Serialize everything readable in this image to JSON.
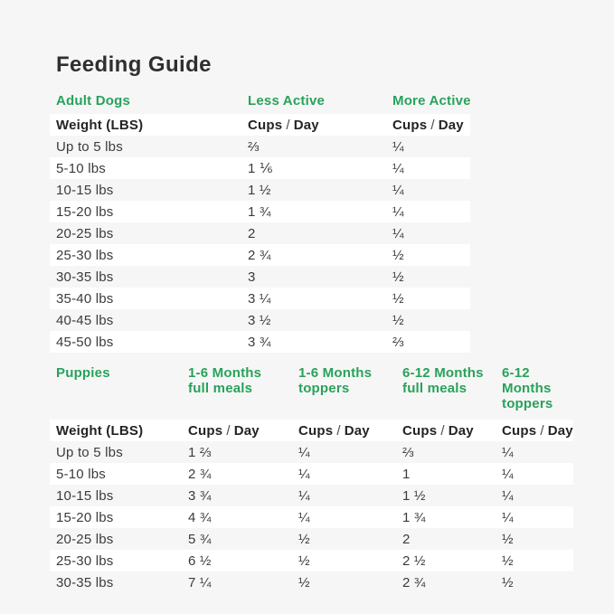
{
  "page": {
    "title": "Feeding Guide"
  },
  "colors": {
    "accent_green": "#28a25b",
    "page_background": "#f6f6f6",
    "row_stripe": "#ffffff",
    "title_text": "#2f2f2f",
    "body_text": "#3b3b3b"
  },
  "labels": {
    "weight_header": "Weight (LBS)",
    "cups": "Cups",
    "slash": "/",
    "day": "Day"
  },
  "adult_table": {
    "section_label": "Adult Dogs",
    "columns": [
      "Less Active",
      "More Active"
    ],
    "rows": [
      {
        "weight": "Up to 5 lbs",
        "less_active": "⅔",
        "more_active": "¼"
      },
      {
        "weight": "5-10 lbs",
        "less_active": "1 ⅙",
        "more_active": "¼"
      },
      {
        "weight": "10-15 lbs",
        "less_active": "1 ½",
        "more_active": "¼"
      },
      {
        "weight": "15-20 lbs",
        "less_active": "1 ¾",
        "more_active": "¼"
      },
      {
        "weight": "20-25 lbs",
        "less_active": "2",
        "more_active": "¼"
      },
      {
        "weight": "25-30 lbs",
        "less_active": "2 ¾",
        "more_active": "½"
      },
      {
        "weight": "30-35 lbs",
        "less_active": "3",
        "more_active": "½"
      },
      {
        "weight": "35-40 lbs",
        "less_active": "3 ¼",
        "more_active": "½"
      },
      {
        "weight": "40-45 lbs",
        "less_active": "3 ½",
        "more_active": "½"
      },
      {
        "weight": "45-50 lbs",
        "less_active": "3 ¾",
        "more_active": "⅔"
      }
    ]
  },
  "puppies_table": {
    "section_label": "Puppies",
    "columns": [
      "1-6 Months\nfull meals",
      "1-6 Months\ntoppers",
      "6-12 Months\nfull meals",
      "6-12 Months\ntoppers"
    ],
    "rows": [
      {
        "weight": "Up to 5 lbs",
        "m1_6_full": "1 ⅔",
        "m1_6_toppers": "¼",
        "m6_12_full": "⅔",
        "m6_12_toppers": "¼"
      },
      {
        "weight": "5-10 lbs",
        "m1_6_full": "2 ¾",
        "m1_6_toppers": "¼",
        "m6_12_full": "1",
        "m6_12_toppers": "¼"
      },
      {
        "weight": "10-15 lbs",
        "m1_6_full": "3 ¾",
        "m1_6_toppers": "¼",
        "m6_12_full": "1 ½",
        "m6_12_toppers": "¼"
      },
      {
        "weight": "15-20 lbs",
        "m1_6_full": "4 ¾",
        "m1_6_toppers": "¼",
        "m6_12_full": "1 ¾",
        "m6_12_toppers": "¼"
      },
      {
        "weight": "20-25 lbs",
        "m1_6_full": "5 ¾",
        "m1_6_toppers": "½",
        "m6_12_full": "2",
        "m6_12_toppers": "½"
      },
      {
        "weight": "25-30 lbs",
        "m1_6_full": "6 ½",
        "m1_6_toppers": "½",
        "m6_12_full": "2 ½",
        "m6_12_toppers": "½"
      },
      {
        "weight": "30-35 lbs",
        "m1_6_full": "7 ¼",
        "m1_6_toppers": "½",
        "m6_12_full": "2 ¾",
        "m6_12_toppers": "½"
      }
    ]
  }
}
